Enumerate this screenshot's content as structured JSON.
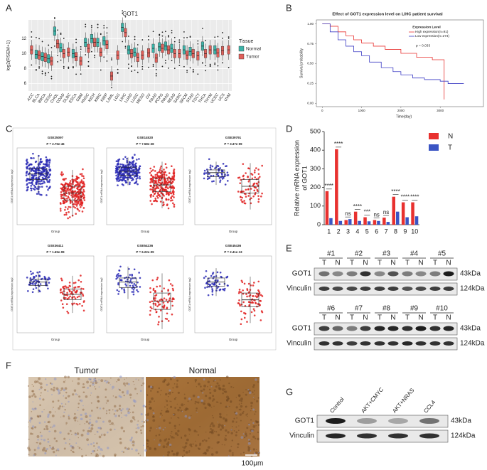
{
  "panel_labels": [
    "A",
    "B",
    "C",
    "D",
    "E",
    "F",
    "G"
  ],
  "chart_data": [
    {
      "type": "box",
      "title": "GOT1",
      "ylabel": "log2(RSEM+1)",
      "legend_title": "Tissue",
      "categories": [
        "ACC",
        "BLCA",
        "BRCA",
        "CESC",
        "CHOL",
        "COAD",
        "DLBC",
        "ESCA",
        "GBM",
        "HNSC",
        "KICH",
        "KIRC",
        "KIRP",
        "LAML",
        "LGG",
        "LIHC",
        "LUAD",
        "LUSC",
        "MESO",
        "OV",
        "PAAD",
        "PCPG",
        "PRAD",
        "READ",
        "SARC",
        "SKCM",
        "STAD",
        "TGCT",
        "THCA",
        "THYM",
        "UCEC",
        "UCS",
        "UVM"
      ],
      "series": [
        {
          "name": "Normal",
          "color": "#3cb3a8",
          "values": [
            null,
            9.9,
            9.6,
            9.3,
            13,
            10.8,
            null,
            10,
            null,
            11.5,
            12,
            11.5,
            11.7,
            null,
            null,
            13.5,
            10.5,
            10.2,
            null,
            null,
            10.7,
            10.9,
            11,
            10.7,
            null,
            10.5,
            10.3,
            null,
            11,
            null,
            10.5,
            null,
            null
          ]
        },
        {
          "name": "Tumor",
          "color": "#e0605a",
          "values": [
            10.5,
            9.8,
            9.5,
            9,
            11.3,
            10,
            10.2,
            9.6,
            9,
            10.7,
            11.5,
            10.2,
            11.2,
            7,
            9.8,
            12.8,
            10,
            9.5,
            9.8,
            10.1,
            9.4,
            10.7,
            10.5,
            10,
            10,
            9.8,
            10,
            9.7,
            10,
            10.5,
            10.1,
            10.4,
            10.5
          ]
        }
      ],
      "ylim": [
        5,
        14.5
      ],
      "yticks": [
        6,
        8,
        10,
        12
      ],
      "grid": true
    },
    {
      "type": "line",
      "title": "Effect of GOT1 expression level on LIHC patient survival",
      "xlabel": "Time(day)",
      "ylabel": "Survival probability",
      "legend_title": "Expression Level",
      "annotation": "p = 0.033",
      "series": [
        {
          "name": "High expression(n=91)",
          "color": "#e8312f",
          "x": [
            0,
            200,
            400,
            600,
            800,
            1000,
            1300,
            1600,
            2000,
            2400,
            2800,
            3050,
            3100
          ],
          "values": [
            1,
            0.97,
            0.9,
            0.85,
            0.8,
            0.76,
            0.72,
            0.68,
            0.63,
            0.58,
            0.55,
            0.55,
            0.05
          ]
        },
        {
          "name": "Low expression(n=274)",
          "color": "#3b3bc4",
          "x": [
            0,
            200,
            400,
            600,
            800,
            1000,
            1200,
            1500,
            1800,
            2000,
            2300,
            2600,
            3000,
            3200,
            3600
          ],
          "values": [
            1,
            0.9,
            0.8,
            0.72,
            0.65,
            0.6,
            0.52,
            0.45,
            0.4,
            0.36,
            0.32,
            0.3,
            0.28,
            0.25,
            0.25
          ]
        }
      ],
      "xlim": [
        -150,
        4100
      ],
      "xticks": [
        0,
        1000,
        2000,
        3000
      ],
      "ylim": [
        -0.04,
        1.05
      ],
      "yticks": [
        {
          "value": 0,
          "label": "0.00"
        },
        {
          "value": 0.25,
          "label": "0.25"
        },
        {
          "value": 0.5,
          "label": "0.50"
        },
        {
          "value": 0.75,
          "label": "0.75"
        },
        {
          "value": 1,
          "label": "1.00"
        }
      ]
    },
    {
      "type": "box",
      "title": "GSE25097",
      "annotation": "P = 2.75e-46",
      "xlabel": "Group",
      "ylabel": "GOT1 mRNA expression log2",
      "ylim": [
        0,
        1
      ],
      "groups": [
        {
          "color": "#2a2ab5",
          "q1": 0.6,
          "median": 0.68,
          "q3": 0.76
        },
        {
          "color": "#e02020",
          "q1": 0.3,
          "median": 0.4,
          "q3": 0.5
        }
      ]
    },
    {
      "type": "box",
      "title": "GSE14520",
      "annotation": "P = 7.58e-28",
      "xlabel": "Group",
      "ylabel": "GOT1 mRNA expression log2",
      "ylim": [
        0,
        1
      ],
      "groups": [
        {
          "color": "#2a2ab5",
          "q1": 0.66,
          "median": 0.72,
          "q3": 0.78
        },
        {
          "color": "#e02020",
          "q1": 0.42,
          "median": 0.52,
          "q3": 0.62
        }
      ]
    },
    {
      "type": "box",
      "title": "GSE39791",
      "annotation": "P = 3.37e-09",
      "xlabel": "Group",
      "ylabel": "GOT1 mRNA expression log2",
      "ylim": [
        0,
        1
      ],
      "groups": [
        {
          "color": "#2a2ab5",
          "q1": 0.64,
          "median": 0.7,
          "q3": 0.74
        },
        {
          "color": "#e02020",
          "q1": 0.4,
          "median": 0.5,
          "q3": 0.6
        }
      ]
    },
    {
      "type": "box",
      "title": "GSE36411",
      "annotation": "P = 1.65e-09",
      "xlabel": "Group",
      "ylabel": "GOT1 mRNA expression log2",
      "ylim": [
        0,
        1
      ],
      "groups": [
        {
          "color": "#2a2ab5",
          "q1": 0.63,
          "median": 0.68,
          "q3": 0.72
        },
        {
          "color": "#e02020",
          "q1": 0.42,
          "median": 0.5,
          "q3": 0.58
        }
      ]
    },
    {
      "type": "box",
      "title": "GSE54236",
      "annotation": "P = 6.22e-09",
      "xlabel": "Group",
      "ylabel": "GOT1 mRNA expression log2",
      "ylim": [
        0,
        1
      ],
      "groups": [
        {
          "color": "#2a2ab5",
          "q1": 0.6,
          "median": 0.68,
          "q3": 0.74
        },
        {
          "color": "#e02020",
          "q1": 0.28,
          "median": 0.4,
          "q3": 0.52
        }
      ]
    },
    {
      "type": "box",
      "title": "GSE45436",
      "annotation": "P = 2.41e-13",
      "xlabel": "Group",
      "ylabel": "GOT1 mRNA expression log2",
      "ylim": [
        0,
        1
      ],
      "groups": [
        {
          "color": "#2a2ab5",
          "q1": 0.62,
          "median": 0.68,
          "q3": 0.74
        },
        {
          "color": "#e02020",
          "q1": 0.32,
          "median": 0.42,
          "q3": 0.52
        }
      ]
    },
    {
      "type": "bar",
      "ylabel": [
        "Relative mRNA expression",
        "of GOT1"
      ],
      "categories": [
        "1",
        "2",
        "3",
        "4",
        "5",
        "6",
        "7",
        "8",
        "9",
        "10"
      ],
      "series": [
        {
          "name": "N",
          "color": "#e8312f",
          "values": [
            180,
            405,
            25,
            70,
            40,
            25,
            38,
            150,
            120,
            120
          ]
        },
        {
          "name": "T",
          "color": "#3b55c4",
          "values": [
            35,
            20,
            30,
            20,
            18,
            20,
            15,
            70,
            40,
            45
          ]
        }
      ],
      "significance": [
        "****",
        "****",
        "ns",
        "****",
        "***",
        "ns",
        "ns",
        "****",
        "****",
        "****"
      ],
      "ylim": [
        0,
        500
      ],
      "yticks": [
        0,
        100,
        200,
        300,
        400,
        500
      ]
    }
  ],
  "blot_e": {
    "samples": [
      "#1",
      "#2",
      "#3",
      "#4",
      "#5",
      "#6",
      "#7",
      "#8",
      "#9",
      "#10"
    ],
    "lanes": [
      "T",
      "N"
    ],
    "proteins": [
      "GOT1",
      "Vinculin"
    ],
    "sizes": [
      "43kDa",
      "124kDa"
    ]
  },
  "histology_f": {
    "labels": [
      "Tumor",
      "Normal"
    ],
    "scale": "100μm"
  },
  "blot_g": {
    "lanes": [
      "Control",
      "AKT+CMYC",
      "AKT+NRAS",
      "CCL4"
    ],
    "proteins": [
      "GOT1",
      "Vinculin"
    ],
    "sizes": [
      "43kDa",
      "124kDa"
    ]
  }
}
